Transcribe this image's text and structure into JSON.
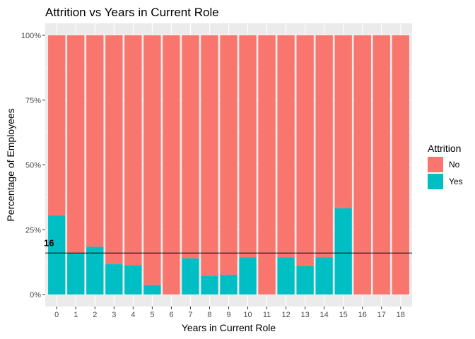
{
  "chart_data": {
    "type": "bar",
    "stacked": true,
    "title": "Attrition vs Years in Current Role",
    "xlabel": "Years in Current Role",
    "ylabel": "Percentage of Employees",
    "ylim": [
      0,
      100
    ],
    "y_ticks": [
      "0%",
      "25%",
      "50%",
      "75%",
      "100%"
    ],
    "categories": [
      "0",
      "1",
      "2",
      "3",
      "4",
      "5",
      "6",
      "7",
      "8",
      "9",
      "10",
      "11",
      "12",
      "13",
      "14",
      "15",
      "16",
      "17",
      "18"
    ],
    "series": [
      {
        "name": "No",
        "color": "#F8766D",
        "values": [
          69.5,
          84.1,
          81.6,
          88.3,
          88.6,
          96.4,
          100,
          86.0,
          92.7,
          92.4,
          85.7,
          100,
          85.7,
          89.1,
          85.7,
          66.7,
          100,
          100,
          100
        ]
      },
      {
        "name": "Yes",
        "color": "#00BFC4",
        "values": [
          30.5,
          15.9,
          18.4,
          11.7,
          11.4,
          3.6,
          0,
          14.0,
          7.3,
          7.6,
          14.3,
          0,
          14.3,
          10.9,
          14.3,
          33.3,
          0,
          0,
          0
        ]
      }
    ],
    "reference_line": {
      "value": 16,
      "label": "16"
    },
    "legend": {
      "title": "Attrition",
      "position": "right"
    },
    "grid": true,
    "panel_background": "#EBEBEB",
    "grid_color": "#FFFFFF"
  }
}
